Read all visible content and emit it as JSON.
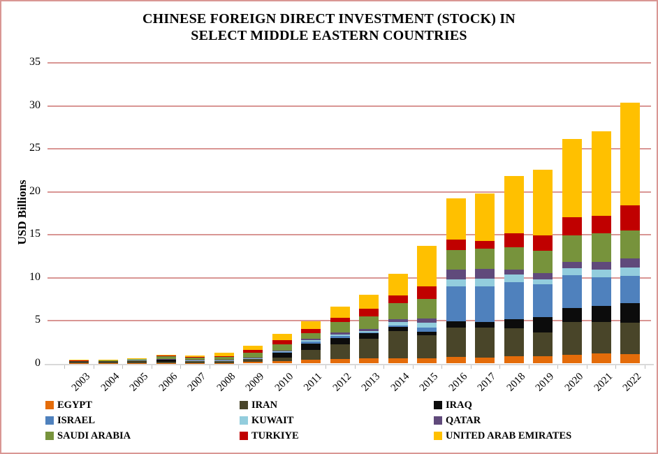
{
  "frame": {
    "border_color": "#D99694",
    "background_color": "#FFFFFF"
  },
  "title": {
    "line1": "CHINESE FOREIGN DIRECT INVESTMENT (STOCK) IN",
    "line2": "SELECT MIDDLE EASTERN COUNTRIES"
  },
  "chart_data": {
    "type": "bar",
    "stacked": true,
    "title": "CHINESE FOREIGN DIRECT INVESTMENT (STOCK) IN SELECT MIDDLE EASTERN COUNTRIES",
    "xlabel": "",
    "ylabel": "USD Billions",
    "ylim": [
      0,
      35
    ],
    "yticks": [
      0,
      5,
      10,
      15,
      20,
      25,
      30,
      35
    ],
    "grid": true,
    "gridline_color": "#D99694",
    "baseline_color": "#D9D9D9",
    "legend_position": "bottom",
    "categories": [
      "2003",
      "2004",
      "2005",
      "2006",
      "2007",
      "2008",
      "2009",
      "2010",
      "2011",
      "2012",
      "2013",
      "2014",
      "2015",
      "2016",
      "2017",
      "2018",
      "2019",
      "2020",
      "2021",
      "2022"
    ],
    "series": [
      {
        "name": "EGYPT",
        "color": "#E46C0A",
        "values": [
          0.02,
          0.02,
          0.03,
          0.05,
          0.05,
          0.05,
          0.2,
          0.28,
          0.45,
          0.5,
          0.6,
          0.65,
          0.6,
          0.8,
          0.7,
          0.85,
          0.85,
          1.05,
          1.15,
          1.1
        ]
      },
      {
        "name": "IRAN",
        "color": "#494529",
        "values": [
          0.25,
          0.25,
          0.3,
          0.15,
          0.25,
          0.25,
          0.3,
          0.45,
          1.1,
          1.7,
          2.25,
          3.1,
          2.7,
          3.4,
          3.5,
          3.25,
          2.75,
          3.8,
          3.65,
          3.65
        ]
      },
      {
        "name": "IRAQ",
        "color": "#0C0C0C",
        "values": [
          0.08,
          0.08,
          0.12,
          0.25,
          0.05,
          0.05,
          0.08,
          0.55,
          0.8,
          0.8,
          0.65,
          0.5,
          0.4,
          0.7,
          0.65,
          1.1,
          1.8,
          1.65,
          1.9,
          2.3
        ]
      },
      {
        "name": "ISRAEL",
        "color": "#4F81BD",
        "values": [
          0.0,
          0.0,
          0.0,
          0.0,
          0.0,
          0.0,
          0.02,
          0.05,
          0.2,
          0.25,
          0.1,
          0.2,
          0.5,
          4.1,
          4.15,
          4.3,
          3.8,
          3.8,
          3.35,
          3.15
        ]
      },
      {
        "name": "KUWAIT",
        "color": "#93CDDD",
        "values": [
          0.02,
          0.02,
          0.02,
          0.05,
          0.05,
          0.05,
          0.05,
          0.15,
          0.15,
          0.1,
          0.15,
          0.4,
          0.55,
          0.8,
          0.9,
          0.9,
          0.6,
          0.8,
          0.85,
          1.0
        ]
      },
      {
        "name": "QATAR",
        "color": "#604A7B",
        "values": [
          0.0,
          0.0,
          0.03,
          0.02,
          0.02,
          0.02,
          0.02,
          0.05,
          0.15,
          0.3,
          0.25,
          0.3,
          0.5,
          1.1,
          1.1,
          0.5,
          0.7,
          0.7,
          0.9,
          1.0
        ]
      },
      {
        "name": "SAUDI ARABIA",
        "color": "#77933C",
        "values": [
          0.02,
          0.03,
          0.05,
          0.35,
          0.3,
          0.35,
          0.6,
          0.7,
          0.7,
          1.15,
          1.5,
          1.9,
          2.25,
          2.3,
          2.4,
          2.6,
          2.6,
          3.1,
          3.4,
          3.3
        ]
      },
      {
        "name": "TURKIYE",
        "color": "#C00000",
        "values": [
          0.01,
          0.01,
          0.02,
          0.03,
          0.03,
          0.12,
          0.3,
          0.5,
          0.5,
          0.55,
          0.9,
          0.85,
          1.5,
          1.2,
          0.9,
          1.7,
          1.8,
          2.1,
          2.0,
          2.9
        ]
      },
      {
        "name": "UNITED ARAB EMIRATES",
        "color": "#FFC000",
        "values": [
          0.05,
          0.05,
          0.08,
          0.15,
          0.2,
          0.4,
          0.48,
          0.72,
          0.9,
          1.3,
          1.6,
          2.55,
          4.7,
          4.8,
          5.5,
          6.6,
          7.7,
          9.1,
          9.8,
          12.0
        ]
      }
    ]
  }
}
